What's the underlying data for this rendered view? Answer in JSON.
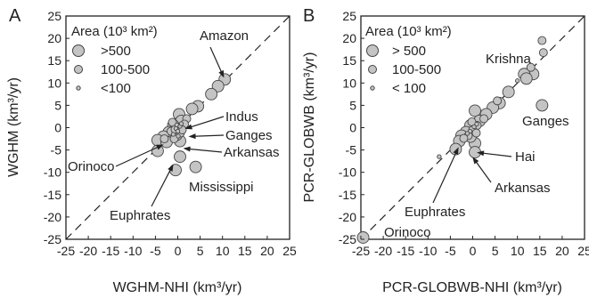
{
  "panels": [
    {
      "letter": "A",
      "chart_data": {
        "type": "scatter",
        "xlabel": "WGHM-NHI (km³/yr)",
        "ylabel": "WGHM (km³/yr)",
        "xlim": [
          -25,
          25
        ],
        "ylim": [
          -25,
          25
        ],
        "xticks": [
          "-25",
          "-20",
          "-15",
          "-10",
          "-5",
          "0",
          "5",
          "10",
          "15",
          "20",
          "25"
        ],
        "yticks": [
          "-25",
          "-20",
          "-15",
          "-10",
          "-5",
          "0",
          "5",
          "10",
          "15",
          "20",
          "25"
        ],
        "legend": {
          "title": "Area (10³ km²)",
          "placement": "top-left",
          "items": [
            {
              "label": ">500",
              "size": "large"
            },
            {
              "label": "100-500",
              "size": "medium"
            },
            {
              "label": "<100",
              "size": "small"
            }
          ]
        },
        "annotations": [
          {
            "label": "Amazon",
            "x": 10.5,
            "y": 10.8
          },
          {
            "label": "Indus",
            "x": 1.2,
            "y": -0.4
          },
          {
            "label": "Ganges",
            "x": 2.0,
            "y": -2.0
          },
          {
            "label": "Arkansas",
            "x": 0.8,
            "y": -4.6
          },
          {
            "label": "Orinoco",
            "x": -2.8,
            "y": -3.6
          },
          {
            "label": "Mississippi",
            "x": 4.5,
            "y": -8.8
          },
          {
            "label": "Euphrates",
            "x": -0.8,
            "y": -7.8
          }
        ],
        "points": [
          {
            "x": 10.5,
            "y": 10.8,
            "size": "large"
          },
          {
            "x": 9.0,
            "y": 9.3,
            "size": "large"
          },
          {
            "x": 7.5,
            "y": 7.5,
            "size": "large"
          },
          {
            "x": 4.5,
            "y": 4.8,
            "size": "large"
          },
          {
            "x": 3.2,
            "y": 4.2,
            "size": "large"
          },
          {
            "x": 0.3,
            "y": 3.0,
            "size": "large"
          },
          {
            "x": 0.8,
            "y": 1.5,
            "size": "large"
          },
          {
            "x": -1.0,
            "y": 0.5,
            "size": "large"
          },
          {
            "x": -2.0,
            "y": -1.0,
            "size": "large"
          },
          {
            "x": -3.2,
            "y": -2.0,
            "size": "large"
          },
          {
            "x": -4.5,
            "y": -2.8,
            "size": "large"
          },
          {
            "x": -2.5,
            "y": -3.2,
            "size": "large"
          },
          {
            "x": -4.5,
            "y": -5.2,
            "size": "large"
          },
          {
            "x": 0.5,
            "y": -3.0,
            "size": "large"
          },
          {
            "x": -0.3,
            "y": -1.6,
            "size": "large"
          },
          {
            "x": 4.0,
            "y": -8.8,
            "size": "large"
          },
          {
            "x": -0.5,
            "y": -9.5,
            "size": "large"
          },
          {
            "x": 0.5,
            "y": -6.5,
            "size": "large"
          },
          {
            "x": 2.0,
            "y": 2.0,
            "size": "medium"
          },
          {
            "x": 1.5,
            "y": 0.8,
            "size": "medium"
          },
          {
            "x": -1.5,
            "y": -0.8,
            "size": "medium"
          },
          {
            "x": 0.2,
            "y": 0.1,
            "size": "medium"
          },
          {
            "x": -0.8,
            "y": -2.5,
            "size": "medium"
          },
          {
            "x": 0.6,
            "y": -1.2,
            "size": "medium"
          },
          {
            "x": -1.2,
            "y": 1.2,
            "size": "medium"
          },
          {
            "x": 1.0,
            "y": -0.5,
            "size": "medium"
          },
          {
            "x": -0.6,
            "y": -0.4,
            "size": "medium"
          },
          {
            "x": -3.0,
            "y": -2.5,
            "size": "medium"
          },
          {
            "x": 0.1,
            "y": -1.9,
            "size": "small"
          },
          {
            "x": -0.2,
            "y": 0.6,
            "size": "small"
          },
          {
            "x": 0.5,
            "y": 0.3,
            "size": "small"
          },
          {
            "x": -0.4,
            "y": -0.2,
            "size": "small"
          },
          {
            "x": 0.0,
            "y": -0.8,
            "size": "small"
          },
          {
            "x": 0.8,
            "y": 0.9,
            "size": "small"
          },
          {
            "x": -1.0,
            "y": -1.5,
            "size": "small"
          }
        ]
      }
    },
    {
      "letter": "B",
      "chart_data": {
        "type": "scatter",
        "xlabel": "PCR-GLOBWB-NHI (km³/yr)",
        "ylabel": "PCR-GLOBWB (km³/yr)",
        "xlim": [
          -25,
          25
        ],
        "ylim": [
          -25,
          25
        ],
        "xticks": [
          "-25",
          "-20",
          "-15",
          "-10",
          "-5",
          "0",
          "5",
          "10",
          "15",
          "20",
          "25"
        ],
        "yticks": [
          "-25",
          "-20",
          "-15",
          "-10",
          "-5",
          "0",
          "5",
          "10",
          "15",
          "20",
          "25"
        ],
        "legend": {
          "title": "Area (10³ km²)",
          "placement": "top-left",
          "items": [
            {
              "label": "> 500",
              "size": "large"
            },
            {
              "label": "100-500",
              "size": "medium"
            },
            {
              "label": "< 100",
              "size": "small"
            }
          ]
        },
        "annotations": [
          {
            "label": "Krishna",
            "x": 15.5,
            "y": 19.5
          },
          {
            "label": "Ganges",
            "x": 15.5,
            "y": 5.0
          },
          {
            "label": "Hai",
            "x": 0.5,
            "y": -5.5
          },
          {
            "label": "Arkansas",
            "x": -0.3,
            "y": -6.2
          },
          {
            "label": "Euphrates",
            "x": -3.0,
            "y": -4.0
          },
          {
            "label": "Orinoco",
            "x": -24.5,
            "y": -24.6
          }
        ],
        "points": [
          {
            "x": 15.5,
            "y": 19.5,
            "size": "medium"
          },
          {
            "x": 15.8,
            "y": 16.8,
            "size": "medium"
          },
          {
            "x": 13.0,
            "y": 13.5,
            "size": "medium"
          },
          {
            "x": 13.5,
            "y": 12.0,
            "size": "large"
          },
          {
            "x": 11.5,
            "y": 12.0,
            "size": "large"
          },
          {
            "x": 12.0,
            "y": 11.0,
            "size": "large"
          },
          {
            "x": 15.5,
            "y": 5.0,
            "size": "large"
          },
          {
            "x": 8.0,
            "y": 8.0,
            "size": "large"
          },
          {
            "x": 6.0,
            "y": 5.5,
            "size": "large"
          },
          {
            "x": 4.5,
            "y": 4.5,
            "size": "large"
          },
          {
            "x": 3.0,
            "y": 3.0,
            "size": "large"
          },
          {
            "x": 0.5,
            "y": 3.8,
            "size": "large"
          },
          {
            "x": 1.5,
            "y": 1.5,
            "size": "large"
          },
          {
            "x": -0.5,
            "y": 0.5,
            "size": "large"
          },
          {
            "x": -1.5,
            "y": -1.0,
            "size": "large"
          },
          {
            "x": -2.5,
            "y": -1.8,
            "size": "large"
          },
          {
            "x": -3.0,
            "y": -3.0,
            "size": "large"
          },
          {
            "x": -3.8,
            "y": -4.8,
            "size": "large"
          },
          {
            "x": 0.5,
            "y": -3.5,
            "size": "large"
          },
          {
            "x": -0.5,
            "y": -2.0,
            "size": "large"
          },
          {
            "x": 0.5,
            "y": -5.5,
            "size": "large"
          },
          {
            "x": -24.5,
            "y": -24.6,
            "size": "large"
          },
          {
            "x": 2.5,
            "y": 2.0,
            "size": "medium"
          },
          {
            "x": 1.0,
            "y": 0.5,
            "size": "medium"
          },
          {
            "x": 0.0,
            "y": -0.5,
            "size": "medium"
          },
          {
            "x": -1.0,
            "y": -1.8,
            "size": "medium"
          },
          {
            "x": -2.0,
            "y": -2.4,
            "size": "medium"
          },
          {
            "x": 0.8,
            "y": -1.2,
            "size": "medium"
          },
          {
            "x": -0.2,
            "y": 1.3,
            "size": "medium"
          },
          {
            "x": 5.5,
            "y": 6.0,
            "size": "medium"
          },
          {
            "x": -7.5,
            "y": -6.5,
            "size": "small"
          },
          {
            "x": 10.0,
            "y": 10.5,
            "size": "small"
          },
          {
            "x": 0.3,
            "y": 0.2,
            "size": "small"
          },
          {
            "x": -0.6,
            "y": -0.8,
            "size": "small"
          },
          {
            "x": 0.9,
            "y": 0.8,
            "size": "small"
          },
          {
            "x": -1.2,
            "y": -1.3,
            "size": "small"
          }
        ]
      }
    }
  ],
  "colors": {
    "marker_fill": "#c4c4c4",
    "marker_stroke": "#444444",
    "axis": "#222222",
    "diagonal": "#222222"
  }
}
